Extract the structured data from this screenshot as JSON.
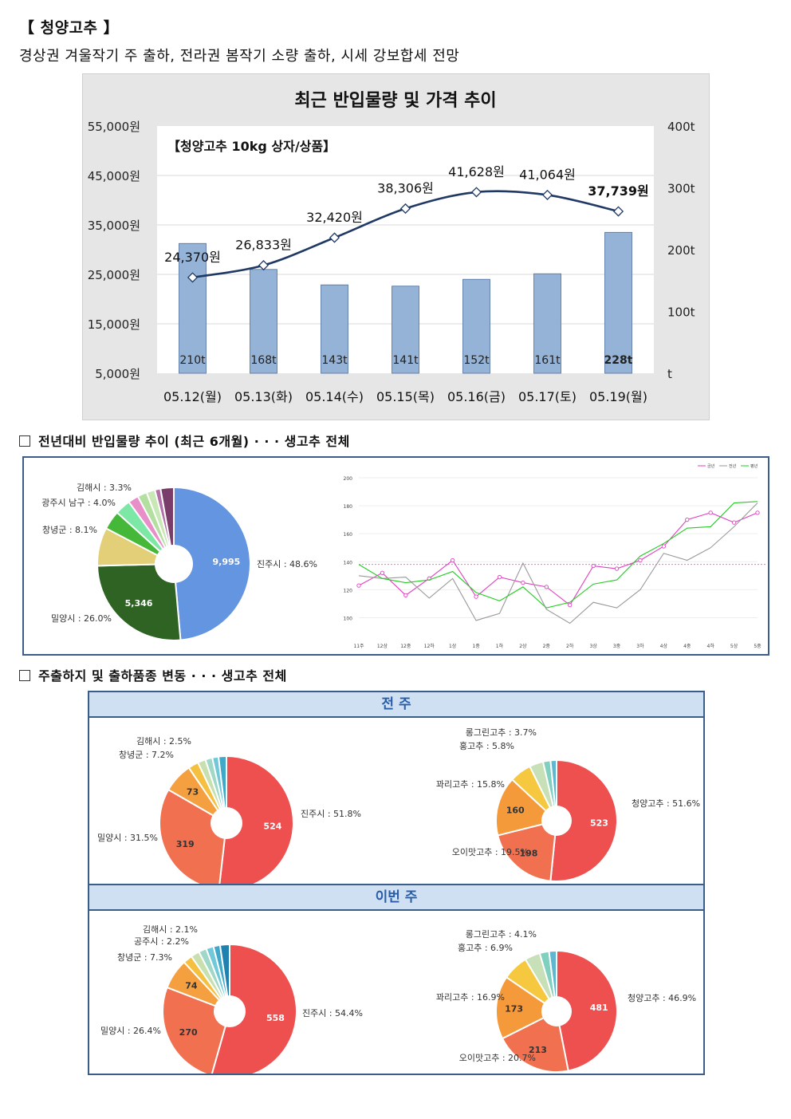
{
  "header": {
    "title": "【 청양고추 】",
    "subtitle": "경상권 겨울작기 주 출하, 전라권 봄작기 소량 출하, 시세 강보합세 전망"
  },
  "chart_data": [
    {
      "type": "bar+line",
      "title": "최근 반입물량 및 가격 추이",
      "subtitle": "【청양고추 10kg 상자/상품】",
      "categories": [
        "05.12(월)",
        "05.13(화)",
        "05.14(수)",
        "05.15(목)",
        "05.16(금)",
        "05.17(토)",
        "05.19(월)"
      ],
      "series": [
        {
          "name": "",
          "axis": "right",
          "kind": "bar",
          "values": [
            210,
            168,
            143,
            141,
            152,
            161,
            228
          ],
          "labels": [
            "210t",
            "168t",
            "143t",
            "141t",
            "152t",
            "161t",
            "228t"
          ]
        },
        {
          "name": "",
          "axis": "left",
          "kind": "line",
          "values": [
            24370,
            26833,
            32420,
            38306,
            41628,
            41064,
            37739
          ],
          "labels": [
            "24,370원",
            "26,833원",
            "32,420원",
            "38,306원",
            "41,628원",
            "41,064원",
            "37,739원"
          ]
        }
      ],
      "y_left": {
        "ticks": [
          "55,000원",
          "45,000원",
          "35,000원",
          "25,000원",
          "15,000원",
          "5,000원"
        ],
        "range": [
          5000,
          55000
        ]
      },
      "y_right": {
        "ticks": [
          "400t",
          "300t",
          "200t",
          "100t",
          "t"
        ],
        "range": [
          0,
          400
        ]
      },
      "colors": {
        "bar": "#95b3d7",
        "line": "#1f3864"
      }
    },
    {
      "type": "pie",
      "title": "",
      "slices": [
        {
          "label": "진주시 : 48.6%",
          "value": 48.6,
          "inner": "9,995",
          "color": "#6495e0"
        },
        {
          "label": "밀양시 : 26.0%",
          "value": 26.0,
          "inner": "5,346",
          "color": "#2e6324"
        },
        {
          "label": "창녕군 : 8.1%",
          "value": 8.1,
          "color": "#e2cf77"
        },
        {
          "label": "광주시 남구 : 4.0%",
          "value": 4.0,
          "color": "#45b83a"
        },
        {
          "label": "김해시 : 3.3%",
          "value": 3.3,
          "color": "#7de8a5"
        },
        {
          "value": 2.2,
          "color": "#e88fc9"
        },
        {
          "value": 2.0,
          "color": "#b3dfa0"
        },
        {
          "value": 1.8,
          "color": "#c8e8b6"
        },
        {
          "value": 1.2,
          "color": "#b36fa8"
        },
        {
          "value": 2.8,
          "color": "#7a3d6a"
        }
      ]
    },
    {
      "type": "line",
      "title": "",
      "legend": [
        "금년",
        "전년",
        "평년"
      ],
      "x": [
        "11주",
        "12상",
        "12중",
        "12하",
        "1상",
        "1중",
        "1하",
        "2상",
        "2중",
        "2하",
        "3상",
        "3중",
        "3하",
        "4상",
        "4중",
        "4하",
        "5상",
        "5중"
      ],
      "y_ticks": [
        "200",
        "180",
        "160",
        "140",
        "120",
        "100"
      ],
      "ylim": [
        90,
        200
      ],
      "reference": 138,
      "series": [
        {
          "name": "금년",
          "color": "#e040c0",
          "values": [
            123,
            132,
            116,
            128,
            141,
            115,
            129,
            125,
            122,
            109,
            137,
            135,
            141,
            151,
            170,
            175,
            168,
            175
          ]
        },
        {
          "name": "전년",
          "color": "#999999",
          "values": [
            130,
            128,
            129,
            114,
            128,
            98,
            103,
            139,
            106,
            96,
            111,
            107,
            120,
            146,
            141,
            150,
            165,
            182
          ]
        },
        {
          "name": "평년",
          "color": "#22cc22",
          "values": [
            138,
            128,
            125,
            127,
            133,
            118,
            112,
            122,
            107,
            111,
            124,
            127,
            144,
            153,
            164,
            165,
            182,
            183
          ]
        }
      ]
    },
    {
      "type": "pie",
      "title": "",
      "slices": [
        {
          "label": "진주시 : 51.8%",
          "value": 51.8,
          "inner": "524",
          "color": "#ee5050"
        },
        {
          "label": "밀양시 : 31.5%",
          "value": 31.5,
          "inner": "319",
          "color": "#f07050"
        },
        {
          "label": "창녕군 : 7.2%",
          "value": 7.2,
          "inner": "73",
          "color": "#f5a040"
        },
        {
          "label": "김해시 : 2.5%",
          "value": 2.5,
          "color": "#f5c040"
        },
        {
          "value": 1.9,
          "color": "#c8e0b0"
        },
        {
          "value": 1.7,
          "color": "#a0d8c8"
        },
        {
          "value": 1.5,
          "color": "#70c8d8"
        },
        {
          "value": 1.9,
          "color": "#40a8c8"
        }
      ]
    },
    {
      "type": "pie",
      "title": "",
      "slices": [
        {
          "label": "청양고추 : 51.6%",
          "value": 51.6,
          "inner": "523",
          "color": "#ee5050"
        },
        {
          "label": "오이맛고추 : 19.5%",
          "value": 19.5,
          "inner": "198",
          "color": "#f07050"
        },
        {
          "label": "꽈리고추 : 15.8%",
          "value": 15.8,
          "inner": "160",
          "color": "#f59a3a"
        },
        {
          "label": "홍고추 : 5.8%",
          "value": 5.8,
          "color": "#f5c840"
        },
        {
          "label": "롱그린고추 : 3.7%",
          "value": 3.7,
          "color": "#c8e0b8"
        },
        {
          "value": 2.0,
          "color": "#80d0c0"
        },
        {
          "value": 1.6,
          "color": "#60b8d0"
        }
      ]
    },
    {
      "type": "pie",
      "title": "",
      "slices": [
        {
          "label": "진주시 : 54.4%",
          "value": 54.4,
          "inner": "558",
          "color": "#ee5050"
        },
        {
          "label": "밀양시 : 26.4%",
          "value": 26.4,
          "inner": "270",
          "color": "#f07050"
        },
        {
          "label": "창녕군 : 7.3%",
          "value": 7.3,
          "inner": "74",
          "color": "#f5a040"
        },
        {
          "label": "공주시 : 2.2%",
          "value": 2.2,
          "color": "#f5c040"
        },
        {
          "label": "김해시 : 2.1%",
          "value": 2.1,
          "color": "#c8e0b0"
        },
        {
          "value": 1.9,
          "color": "#a0d8c8"
        },
        {
          "value": 1.8,
          "color": "#70c8d8"
        },
        {
          "value": 1.6,
          "color": "#40a8c8"
        },
        {
          "value": 2.3,
          "color": "#2080b0"
        }
      ]
    },
    {
      "type": "pie",
      "title": "",
      "slices": [
        {
          "label": "청양고추 : 46.9%",
          "value": 46.9,
          "inner": "481",
          "color": "#ee5050"
        },
        {
          "label": "오이맛고추 : 20.7%",
          "value": 20.7,
          "inner": "213",
          "color": "#f07050"
        },
        {
          "label": "꽈리고추 : 16.9%",
          "value": 16.9,
          "inner": "173",
          "color": "#f59a3a"
        },
        {
          "label": "홍고추 : 6.9%",
          "value": 6.9,
          "color": "#f5c840"
        },
        {
          "label": "롱그린고추 : 4.1%",
          "value": 4.1,
          "color": "#c8e0b8"
        },
        {
          "value": 2.5,
          "color": "#80d0c0"
        },
        {
          "value": 2.0,
          "color": "#60b8d0"
        }
      ]
    }
  ],
  "sections": {
    "arrival_trend": "전년대비 반입물량 추이 (최근 6개월) · · · 생고추 전체",
    "shipping": "주출하지 및 출하품종 변동 · · · 생고추 전체",
    "prev_week": "전 주",
    "this_week": "이번 주"
  }
}
